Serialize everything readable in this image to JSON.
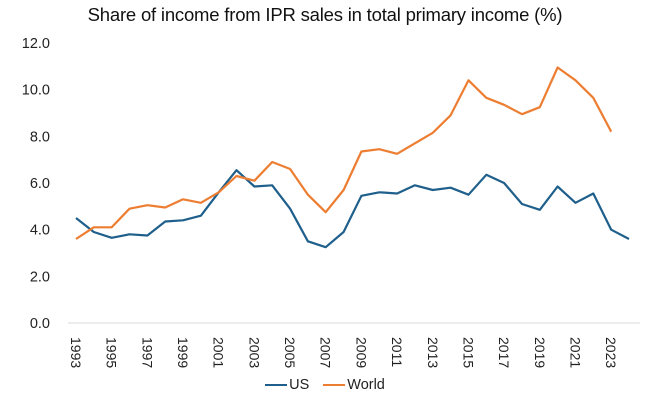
{
  "chart_data": {
    "type": "line",
    "title": "Share of income from IPR sales in total primary income (%)",
    "xlabel": "",
    "ylabel": "",
    "ylim": [
      0,
      12
    ],
    "yticks": [
      "0.0",
      "2.0",
      "4.0",
      "6.0",
      "8.0",
      "10.0",
      "12.0"
    ],
    "xticks": [
      "1993",
      "1995",
      "1997",
      "1999",
      "2001",
      "2003",
      "2005",
      "2007",
      "2009",
      "2011",
      "2013",
      "2015",
      "2017",
      "2019",
      "2021",
      "2023"
    ],
    "x": [
      1993,
      1994,
      1995,
      1996,
      1997,
      1998,
      1999,
      2000,
      2001,
      2002,
      2003,
      2004,
      2005,
      2006,
      2007,
      2008,
      2009,
      2010,
      2011,
      2012,
      2013,
      2014,
      2015,
      2016,
      2017,
      2018,
      2019,
      2020,
      2021,
      2022,
      2023,
      2024
    ],
    "grid": false,
    "legend_position": "bottom",
    "series": [
      {
        "name": "US",
        "color": "#1f5f8b",
        "values": [
          4.5,
          3.9,
          3.65,
          3.8,
          3.75,
          4.35,
          4.4,
          4.6,
          5.6,
          6.55,
          5.85,
          5.9,
          4.9,
          3.5,
          3.25,
          3.9,
          5.45,
          5.6,
          5.55,
          5.9,
          5.7,
          5.8,
          5.5,
          6.35,
          6.0,
          5.1,
          4.85,
          5.85,
          5.15,
          5.55,
          4.0,
          3.6
        ]
      },
      {
        "name": "World",
        "color": "#ed7d31",
        "values": [
          3.6,
          4.1,
          4.1,
          4.9,
          5.05,
          4.95,
          5.3,
          5.15,
          5.6,
          6.3,
          6.1,
          6.9,
          6.6,
          5.5,
          4.75,
          5.7,
          7.35,
          7.45,
          7.25,
          7.7,
          8.15,
          8.9,
          10.4,
          9.65,
          9.35,
          8.95,
          9.25,
          10.95,
          10.4,
          9.65,
          8.2,
          null
        ]
      }
    ]
  }
}
